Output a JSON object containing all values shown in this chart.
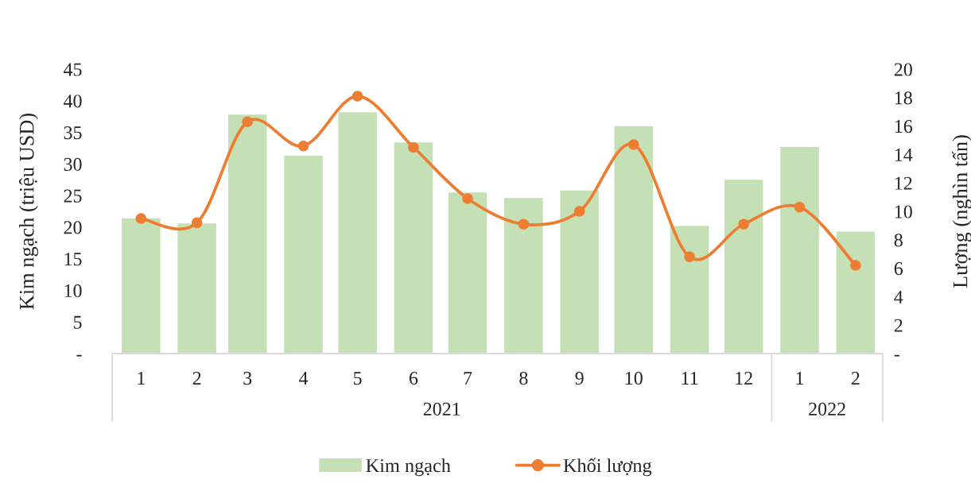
{
  "chart_data": {
    "type": "bar",
    "x": [
      "2021-01",
      "2021-02",
      "2021-03",
      "2021-04",
      "2021-05",
      "2021-06",
      "2021-07",
      "2021-08",
      "2021-09",
      "2021-10",
      "2021-11",
      "2021-12",
      "2022-01",
      "2022-02"
    ],
    "xlim": [
      "2020-12-16",
      "2022-02-16"
    ],
    "xticks": [
      {
        "value": "2021-01",
        "label": "1"
      },
      {
        "value": "2021-02",
        "label": "2"
      },
      {
        "value": "2021-03",
        "label": "3"
      },
      {
        "value": "2021-04",
        "label": "4"
      },
      {
        "value": "2021-05",
        "label": "5"
      },
      {
        "value": "2021-06",
        "label": "6"
      },
      {
        "value": "2021-07",
        "label": "7"
      },
      {
        "value": "2021-08",
        "label": "8"
      },
      {
        "value": "2021-09",
        "label": "9"
      },
      {
        "value": "2021-10",
        "label": "10"
      },
      {
        "value": "2021-11",
        "label": "11"
      },
      {
        "value": "2021-12",
        "label": "12"
      },
      {
        "value": "2022-01",
        "label": "1"
      },
      {
        "value": "2022-02",
        "label": "2"
      }
    ],
    "annotations": [
      "2021",
      "2022"
    ],
    "ylabel": "Kim ngạch (triệu USD)",
    "y2label": "Lượng (nghìn tấn)",
    "ylim": [
      0,
      45
    ],
    "yticks": [
      {
        "value": 0,
        "label": "-"
      },
      5,
      10,
      15,
      20,
      25,
      30,
      35,
      40,
      45
    ],
    "y2lim": [
      0,
      20
    ],
    "y2ticks": [
      {
        "value": 0,
        "label": "-"
      },
      2,
      4,
      6,
      8,
      10,
      12,
      14,
      16,
      18,
      20
    ],
    "legend": "bottom",
    "marker": "circle",
    "series": [
      {
        "name": "Kim ngạch",
        "color": "#c5e0b4",
        "values": [
          21.4,
          20.6,
          37.8,
          31.3,
          38.2,
          33.4,
          25.5,
          24.6,
          25.8,
          36.0,
          20.2,
          27.5,
          32.7,
          19.3
        ]
      },
      {
        "name": "Khối lượng",
        "type": "line",
        "axis": "y2",
        "color": "#ed7d31",
        "values": [
          9.5,
          9.2,
          16.3,
          14.6,
          18.1,
          14.5,
          10.9,
          9.1,
          10.0,
          14.7,
          6.8,
          9.1,
          10.3,
          6.2
        ]
      }
    ]
  }
}
